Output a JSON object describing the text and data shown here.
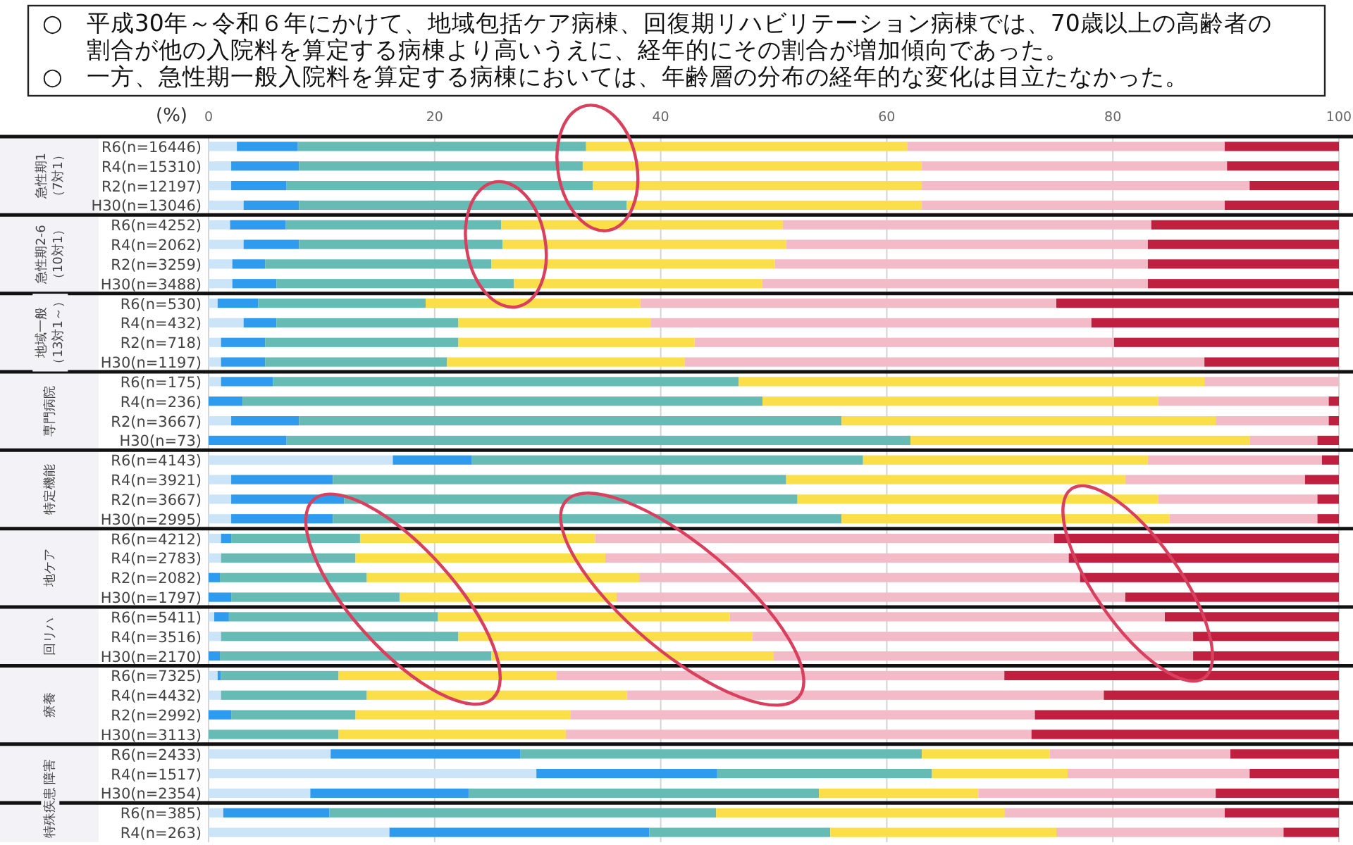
{
  "chart_data": {
    "type": "bar",
    "orientation": "horizontal",
    "stacked": true,
    "title": "○　平成30年～令和６年にかけて、地域包括ケア病棟、回復期リハビリテーション病棟では、70歳以上の高齢者の割合が他の入院料を算定する病棟より高いうえに、経年的にその割合が増加傾向であった。",
    "subtitle": "○　一方、急性期一般入院料を算定する病棟においては、年齢層の分布の経年的な変化は目立たなかった。",
    "xlabel": "(%)",
    "categories": [
      "R6(n=16446)",
      "R4(n=15310)",
      "R2(n=12197)",
      "H30(n=13046)",
      "R6(n=4252)",
      "R4(n=2062)",
      "R2(n=3259)",
      "H30(n=3488)",
      "R6(n=530)",
      "R4(n=432)",
      "R2(n=718)",
      "H30(n=1197)",
      "R6(n=175)",
      "R4(n=236)",
      "R2(n=3667)",
      "H30(n=73)",
      "R6(n=4143)",
      "R4(n=3921)",
      "R2(n=3667)",
      "H30(n=2995)",
      "R6(n=4212)",
      "R4(n=2783)",
      "R2(n=2082)",
      "H30(n=1797)",
      "R6(n=5411)",
      "R4(n=3516)",
      "H30(n=2170)",
      "R6(n=7325)",
      "R4(n=4432)",
      "R2(n=2992)",
      "H30(n=3113)",
      "R6(n=2433)",
      "R4(n=1517)",
      "H30(n=2354)",
      "R6(n=385)",
      "R4(n=263)"
    ],
    "series": [
      {
        "color": "#cce4f7",
        "values": [
          2.5,
          2.0,
          2.0,
          3.1,
          1.9,
          3.1,
          2.1,
          2.1,
          0.8,
          3.1,
          1.1,
          1.1,
          1.1,
          0,
          2.0,
          0,
          16.3,
          2.0,
          2.0,
          2.0,
          1.1,
          1.1,
          0,
          0,
          0.5,
          1.1,
          0,
          0.8,
          1.1,
          0,
          0,
          10.8,
          29.0,
          9.0,
          1.3,
          16.0
        ]
      },
      {
        "color": "#2f9bef",
        "values": [
          5.4,
          6.0,
          4.9,
          4.9,
          4.9,
          4.9,
          2.9,
          3.9,
          3.6,
          2.9,
          3.9,
          3.9,
          4.6,
          3.0,
          6.0,
          6.9,
          7.0,
          9.0,
          10.0,
          9.0,
          0.9,
          0,
          1.0,
          2.0,
          1.3,
          0,
          1.0,
          0.3,
          0,
          2.0,
          0,
          16.8,
          16.0,
          14.0,
          9.4,
          23.0
        ]
      },
      {
        "color": "#66bbb4",
        "values": [
          25.5,
          25.1,
          27.1,
          29.0,
          19.1,
          18.0,
          20.0,
          21.0,
          14.8,
          16.1,
          17.1,
          16.1,
          41.2,
          46.0,
          48.0,
          55.2,
          34.6,
          40.1,
          40.1,
          45.0,
          11.4,
          11.9,
          13.0,
          14.9,
          18.5,
          21.0,
          24.0,
          10.4,
          12.9,
          11.0,
          11.5,
          35.5,
          19.0,
          31.0,
          34.2,
          16.0
        ]
      },
      {
        "color": "#fbdf4a",
        "values": [
          28.4,
          30.0,
          29.1,
          26.1,
          24.9,
          25.1,
          25.1,
          22.0,
          19.0,
          17.0,
          20.9,
          21.0,
          41.2,
          35.0,
          33.1,
          30.0,
          25.2,
          30.0,
          31.9,
          29.0,
          20.8,
          22.1,
          24.1,
          19.2,
          25.8,
          26.0,
          25.0,
          19.3,
          23.0,
          19.0,
          20.1,
          11.3,
          12.0,
          14.1,
          25.5,
          20.0
        ]
      },
      {
        "color": "#f3bac7",
        "values": [
          28.1,
          27.0,
          29.0,
          26.8,
          32.6,
          32.0,
          33.0,
          34.1,
          36.8,
          39.0,
          37.1,
          46.0,
          11.9,
          15.1,
          10.0,
          6.0,
          15.4,
          15.9,
          14.1,
          13.1,
          40.6,
          41.0,
          39.0,
          45.0,
          38.5,
          39.0,
          37.1,
          39.6,
          42.2,
          41.1,
          41.2,
          16.0,
          16.1,
          21.0,
          19.5,
          20.1
        ]
      },
      {
        "color": "#c0203f",
        "values": [
          10.1,
          9.9,
          7.9,
          10.1,
          16.6,
          16.9,
          16.9,
          16.9,
          25.0,
          21.9,
          19.9,
          11.9,
          0,
          0.9,
          0.9,
          1.9,
          1.5,
          3.0,
          1.9,
          1.9,
          25.2,
          23.9,
          22.9,
          18.9,
          15.4,
          12.9,
          12.9,
          29.6,
          20.8,
          26.9,
          27.2,
          9.6,
          7.9,
          10.9,
          10.1,
          4.9
        ]
      }
    ],
    "xlim": [
      0,
      100
    ],
    "xticks": [
      0,
      20,
      40,
      60,
      80,
      100
    ],
    "grid": "x",
    "annotations": [
      "急性期1\n（7対1）",
      "急性期2-6\n（10対1）",
      "地域一般（13対1～）",
      "専門病院",
      "特定機能",
      "地ケア",
      "回リハ",
      "療養",
      "障害",
      "特殊疾患"
    ]
  }
}
